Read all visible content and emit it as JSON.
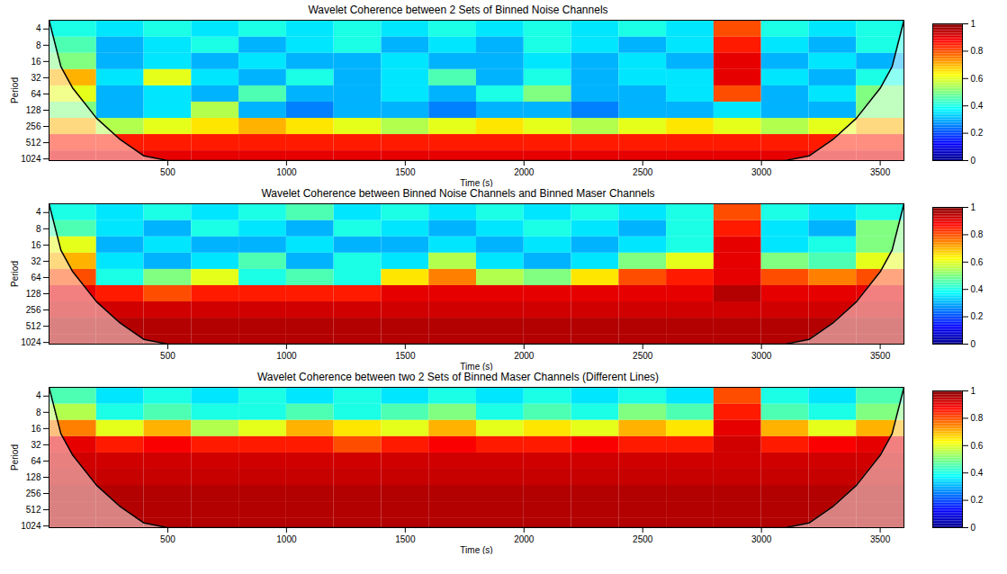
{
  "chart_data": [
    {
      "type": "heatmap",
      "title": "Wavelet Coherence between 2 Sets of Binned Noise Channels",
      "x_label": "Time (s)",
      "y_label": "Period",
      "log": "y",
      "xlim": [
        0,
        3600
      ],
      "xticks": [
        500,
        1000,
        1500,
        2000,
        2500,
        3000,
        3500
      ],
      "ylim": [
        2.75,
        1100
      ],
      "yticks": [
        4,
        8,
        16,
        32,
        64,
        128,
        256,
        512,
        1024
      ],
      "x_edges": [
        0,
        200,
        400,
        600,
        800,
        1000,
        1200,
        1400,
        1600,
        1800,
        2000,
        2200,
        2400,
        2600,
        2800,
        3000,
        3200,
        3400,
        3600
      ],
      "period_edges": [
        2.75,
        5.66,
        11.3,
        22.6,
        45.3,
        90.5,
        181,
        362,
        724,
        1100
      ],
      "values": [
        [
          0.4,
          0.35,
          0.4,
          0.35,
          0.4,
          0.35,
          0.4,
          0.35,
          0.4,
          0.35,
          0.4,
          0.35,
          0.4,
          0.35,
          0.8,
          0.4,
          0.35,
          0.4
        ],
        [
          0.45,
          0.3,
          0.35,
          0.4,
          0.3,
          0.35,
          0.4,
          0.3,
          0.35,
          0.3,
          0.4,
          0.35,
          0.3,
          0.35,
          0.85,
          0.35,
          0.3,
          0.4
        ],
        [
          0.5,
          0.3,
          0.35,
          0.3,
          0.35,
          0.3,
          0.3,
          0.35,
          0.3,
          0.3,
          0.35,
          0.3,
          0.35,
          0.3,
          0.9,
          0.3,
          0.35,
          0.3
        ],
        [
          0.7,
          0.35,
          0.6,
          0.35,
          0.3,
          0.4,
          0.3,
          0.35,
          0.45,
          0.3,
          0.4,
          0.3,
          0.35,
          0.35,
          0.9,
          0.35,
          0.3,
          0.4
        ],
        [
          0.6,
          0.3,
          0.35,
          0.3,
          0.45,
          0.3,
          0.3,
          0.35,
          0.3,
          0.4,
          0.5,
          0.3,
          0.3,
          0.35,
          0.8,
          0.3,
          0.35,
          0.5
        ],
        [
          0.5,
          0.3,
          0.35,
          0.55,
          0.3,
          0.25,
          0.3,
          0.3,
          0.25,
          0.3,
          0.3,
          0.25,
          0.3,
          0.3,
          0.35,
          0.3,
          0.3,
          0.5
        ],
        [
          0.7,
          0.55,
          0.6,
          0.65,
          0.7,
          0.65,
          0.6,
          0.55,
          0.6,
          0.65,
          0.6,
          0.55,
          0.6,
          0.65,
          0.6,
          0.55,
          0.6,
          0.7
        ],
        [
          0.85,
          0.85,
          0.85,
          0.85,
          0.85,
          0.85,
          0.85,
          0.85,
          0.85,
          0.85,
          0.85,
          0.85,
          0.85,
          0.85,
          0.85,
          0.85,
          0.85,
          0.85
        ],
        [
          0.9,
          0.9,
          0.9,
          0.9,
          0.9,
          0.9,
          0.9,
          0.9,
          0.9,
          0.9,
          0.9,
          0.9,
          0.9,
          0.9,
          0.9,
          0.9,
          0.9,
          0.9
        ]
      ],
      "colorbar": {
        "range": [
          0,
          1
        ],
        "ticks": [
          0,
          0.2,
          0.4,
          0.6,
          0.8,
          1
        ]
      },
      "cone_of_influence": {
        "x": [
          0,
          50,
          100,
          200,
          300,
          400,
          500,
          3100,
          3200,
          3300,
          3400,
          3500,
          3550,
          3600
        ],
        "period": [
          2.75,
          20,
          50,
          180,
          450,
          900,
          1100,
          1100,
          900,
          450,
          180,
          50,
          20,
          2.75
        ]
      }
    },
    {
      "type": "heatmap",
      "title": "Wavelet Coherence between Binned Noise Channels and Binned Maser Channels",
      "x_label": "Time (s)",
      "y_label": "Period",
      "log": "y",
      "xlim": [
        0,
        3600
      ],
      "xticks": [
        500,
        1000,
        1500,
        2000,
        2500,
        3000,
        3500
      ],
      "ylim": [
        2.75,
        1100
      ],
      "yticks": [
        4,
        8,
        16,
        32,
        64,
        128,
        256,
        512,
        1024
      ],
      "x_edges": [
        0,
        200,
        400,
        600,
        800,
        1000,
        1200,
        1400,
        1600,
        1800,
        2000,
        2200,
        2400,
        2600,
        2800,
        3000,
        3200,
        3400,
        3600
      ],
      "period_edges": [
        2.75,
        5.66,
        11.3,
        22.6,
        45.3,
        90.5,
        181,
        362,
        724,
        1100
      ],
      "values": [
        [
          0.4,
          0.35,
          0.4,
          0.35,
          0.4,
          0.45,
          0.35,
          0.4,
          0.35,
          0.4,
          0.35,
          0.4,
          0.35,
          0.4,
          0.8,
          0.4,
          0.35,
          0.4
        ],
        [
          0.45,
          0.35,
          0.3,
          0.4,
          0.35,
          0.3,
          0.4,
          0.35,
          0.3,
          0.35,
          0.4,
          0.35,
          0.3,
          0.4,
          0.85,
          0.35,
          0.3,
          0.5
        ],
        [
          0.6,
          0.3,
          0.35,
          0.3,
          0.3,
          0.35,
          0.3,
          0.3,
          0.35,
          0.3,
          0.35,
          0.3,
          0.35,
          0.4,
          0.9,
          0.35,
          0.4,
          0.5
        ],
        [
          0.7,
          0.35,
          0.3,
          0.35,
          0.45,
          0.3,
          0.4,
          0.35,
          0.55,
          0.35,
          0.3,
          0.35,
          0.5,
          0.6,
          0.9,
          0.5,
          0.45,
          0.6
        ],
        [
          0.8,
          0.4,
          0.5,
          0.6,
          0.4,
          0.45,
          0.4,
          0.65,
          0.75,
          0.55,
          0.5,
          0.65,
          0.8,
          0.85,
          0.9,
          0.8,
          0.75,
          0.8
        ],
        [
          0.9,
          0.85,
          0.8,
          0.85,
          0.85,
          0.85,
          0.85,
          0.9,
          0.9,
          0.9,
          0.9,
          0.9,
          0.9,
          0.9,
          0.95,
          0.9,
          0.9,
          0.9
        ],
        [
          0.92,
          0.92,
          0.92,
          0.92,
          0.92,
          0.92,
          0.92,
          0.92,
          0.92,
          0.92,
          0.92,
          0.92,
          0.92,
          0.92,
          0.92,
          0.92,
          0.92,
          0.92
        ],
        [
          0.95,
          0.95,
          0.95,
          0.95,
          0.95,
          0.95,
          0.95,
          0.95,
          0.95,
          0.95,
          0.95,
          0.95,
          0.95,
          0.95,
          0.95,
          0.95,
          0.95,
          0.95
        ],
        [
          0.95,
          0.95,
          0.95,
          0.95,
          0.95,
          0.95,
          0.95,
          0.95,
          0.95,
          0.95,
          0.95,
          0.95,
          0.95,
          0.95,
          0.95,
          0.95,
          0.95,
          0.95
        ]
      ],
      "colorbar": {
        "range": [
          0,
          1
        ],
        "ticks": [
          0,
          0.2,
          0.4,
          0.6,
          0.8,
          1
        ]
      },
      "cone_of_influence": {
        "x": [
          0,
          50,
          100,
          200,
          300,
          400,
          500,
          3100,
          3200,
          3300,
          3400,
          3500,
          3550,
          3600
        ],
        "period": [
          2.75,
          20,
          50,
          180,
          450,
          900,
          1100,
          1100,
          900,
          450,
          180,
          50,
          20,
          2.75
        ]
      }
    },
    {
      "type": "heatmap",
      "title": "Wavelet Coherence between two 2 Sets of Binned Maser Channels (Different Lines)",
      "x_label": "Time (s)",
      "y_label": "Period",
      "log": "y",
      "xlim": [
        0,
        3600
      ],
      "xticks": [
        500,
        1000,
        1500,
        2000,
        2500,
        3000,
        3500
      ],
      "ylim": [
        2.75,
        1100
      ],
      "yticks": [
        4,
        8,
        16,
        32,
        64,
        128,
        256,
        512,
        1024
      ],
      "x_edges": [
        0,
        200,
        400,
        600,
        800,
        1000,
        1200,
        1400,
        1600,
        1800,
        2000,
        2200,
        2400,
        2600,
        2800,
        3000,
        3200,
        3400,
        3600
      ],
      "period_edges": [
        2.75,
        5.66,
        11.3,
        22.6,
        45.3,
        90.5,
        181,
        362,
        724,
        1100
      ],
      "values": [
        [
          0.45,
          0.35,
          0.4,
          0.35,
          0.4,
          0.35,
          0.4,
          0.35,
          0.4,
          0.35,
          0.4,
          0.35,
          0.4,
          0.35,
          0.8,
          0.4,
          0.35,
          0.45
        ],
        [
          0.55,
          0.4,
          0.45,
          0.4,
          0.4,
          0.45,
          0.4,
          0.45,
          0.5,
          0.4,
          0.45,
          0.4,
          0.5,
          0.45,
          0.85,
          0.45,
          0.4,
          0.5
        ],
        [
          0.75,
          0.6,
          0.7,
          0.55,
          0.6,
          0.7,
          0.65,
          0.6,
          0.7,
          0.6,
          0.65,
          0.6,
          0.7,
          0.65,
          0.9,
          0.7,
          0.6,
          0.7
        ],
        [
          0.9,
          0.85,
          0.88,
          0.85,
          0.85,
          0.85,
          0.8,
          0.85,
          0.88,
          0.85,
          0.85,
          0.88,
          0.85,
          0.85,
          0.92,
          0.85,
          0.88,
          0.9
        ],
        [
          0.92,
          0.92,
          0.92,
          0.92,
          0.92,
          0.92,
          0.92,
          0.92,
          0.92,
          0.92,
          0.92,
          0.92,
          0.92,
          0.92,
          0.92,
          0.92,
          0.92,
          0.92
        ],
        [
          0.93,
          0.93,
          0.93,
          0.93,
          0.93,
          0.93,
          0.93,
          0.93,
          0.93,
          0.93,
          0.93,
          0.93,
          0.93,
          0.93,
          0.93,
          0.93,
          0.93,
          0.93
        ],
        [
          0.95,
          0.95,
          0.95,
          0.95,
          0.95,
          0.95,
          0.95,
          0.95,
          0.95,
          0.95,
          0.95,
          0.95,
          0.95,
          0.95,
          0.95,
          0.95,
          0.95,
          0.95
        ],
        [
          0.95,
          0.95,
          0.95,
          0.95,
          0.95,
          0.95,
          0.95,
          0.95,
          0.95,
          0.95,
          0.95,
          0.95,
          0.95,
          0.95,
          0.95,
          0.95,
          0.95,
          0.95
        ],
        [
          0.95,
          0.95,
          0.95,
          0.95,
          0.95,
          0.95,
          0.95,
          0.95,
          0.95,
          0.95,
          0.95,
          0.95,
          0.95,
          0.95,
          0.95,
          0.95,
          0.95,
          0.95
        ]
      ],
      "colorbar": {
        "range": [
          0,
          1
        ],
        "ticks": [
          0,
          0.2,
          0.4,
          0.6,
          0.8,
          1
        ]
      },
      "cone_of_influence": {
        "x": [
          0,
          50,
          100,
          200,
          300,
          400,
          500,
          3100,
          3200,
          3300,
          3400,
          3500,
          3550,
          3600
        ],
        "period": [
          2.75,
          20,
          50,
          180,
          450,
          900,
          1100,
          1100,
          900,
          450,
          180,
          50,
          20,
          2.75
        ]
      }
    }
  ]
}
